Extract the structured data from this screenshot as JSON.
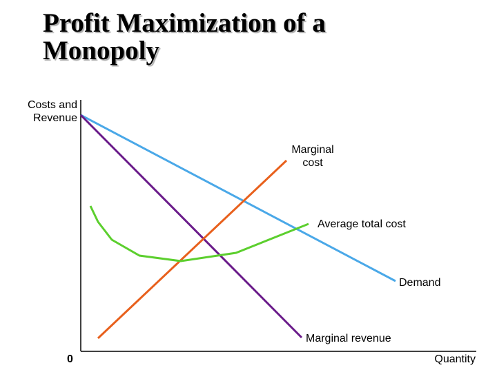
{
  "title": "Profit Maximization of a Monopoly",
  "axes": {
    "y_label": "Costs and Revenue",
    "x_label": "Quantity",
    "origin": "0"
  },
  "curves": {
    "marginal_cost": "Marginal cost",
    "average_total_cost": "Average total cost",
    "demand": "Demand",
    "marginal_revenue": "Marginal revenue"
  }
}
